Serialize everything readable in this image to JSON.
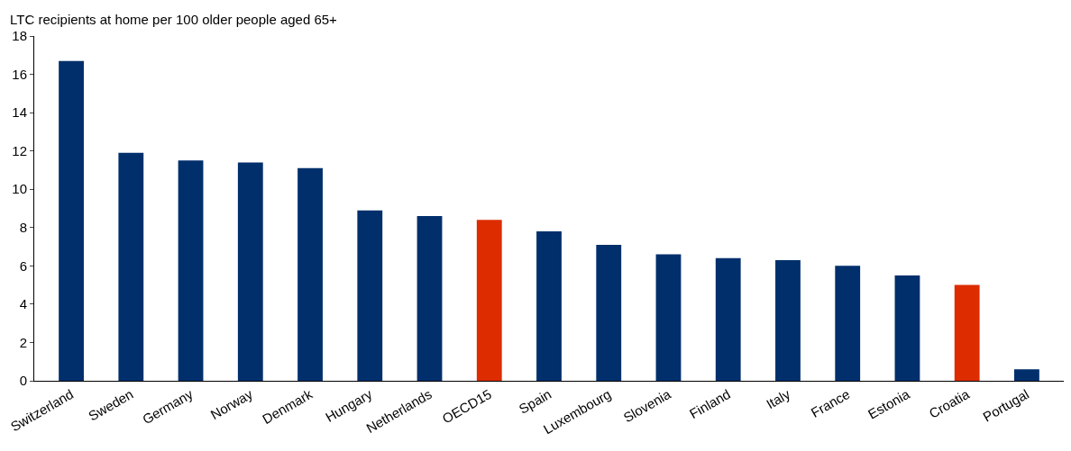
{
  "chart_data": {
    "type": "bar",
    "ylabel": "LTC recipients at home per 100 older people aged 65+",
    "categories": [
      "Switzerland",
      "Sweden",
      "Germany",
      "Norway",
      "Denmark",
      "Hungary",
      "Netherlands",
      "OECD15",
      "Spain",
      "Luxembourg",
      "Slovenia",
      "Finland",
      "Italy",
      "France",
      "Estonia",
      "Croatia",
      "Portugal"
    ],
    "values": [
      16.7,
      11.9,
      11.5,
      11.4,
      11.1,
      8.9,
      8.6,
      8.4,
      7.8,
      7.1,
      6.6,
      6.4,
      6.3,
      6.0,
      5.5,
      5.0,
      0.6
    ],
    "colors": [
      "#002f6c",
      "#002f6c",
      "#002f6c",
      "#002f6c",
      "#002f6c",
      "#002f6c",
      "#002f6c",
      "#dd2c00",
      "#002f6c",
      "#002f6c",
      "#002f6c",
      "#002f6c",
      "#002f6c",
      "#002f6c",
      "#002f6c",
      "#dd2c00",
      "#002f6c"
    ],
    "ylim": [
      0,
      18
    ],
    "yticks": [
      0,
      2,
      4,
      6,
      8,
      10,
      12,
      14,
      16,
      18
    ],
    "grid": false
  }
}
